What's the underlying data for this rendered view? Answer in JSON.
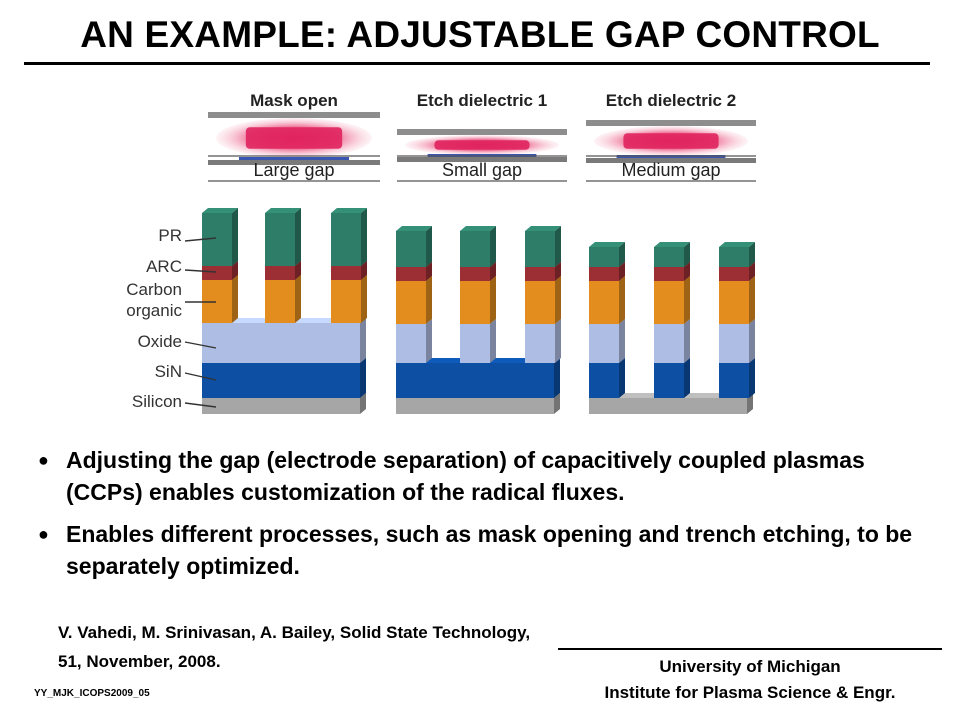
{
  "title": "AN EXAMPLE: ADJUSTABLE GAP CONTROL",
  "diagram": {
    "panels": [
      {
        "heading": "Mask open",
        "gap_label": "Large gap"
      },
      {
        "heading": "Etch dielectric 1",
        "gap_label": "Small gap"
      },
      {
        "heading": "Etch dielectric 2",
        "gap_label": "Medium gap"
      }
    ],
    "layer_labels": [
      "PR",
      "ARC",
      "Carbon\norganic",
      "Oxide",
      "SiN",
      "Silicon"
    ],
    "colors": {
      "pr": "#2e7d68",
      "arc": "#9b2f33",
      "carbon_organic": "#e38d1f",
      "oxide": "#aebde3",
      "sin": "#0d4fa3",
      "silicon": "#a6a6a6",
      "plasma": "#e0245e"
    }
  },
  "bullets": [
    "Adjusting the gap (electrode separation) of capacitively coupled plasmas (CCPs) enables customization of the radical fluxes.",
    "Enables different processes, such as mask opening and trench etching, to be separately optimized."
  ],
  "citation": "V. Vahedi, M. Srinivasan, A. Bailey, Solid State Technology, 51, November, 2008.",
  "affiliation": {
    "line1": "University of Michigan",
    "line2": "Institute for Plasma Science & Engr."
  },
  "slide_id": "YY_MJK_ICOPS2009_05"
}
